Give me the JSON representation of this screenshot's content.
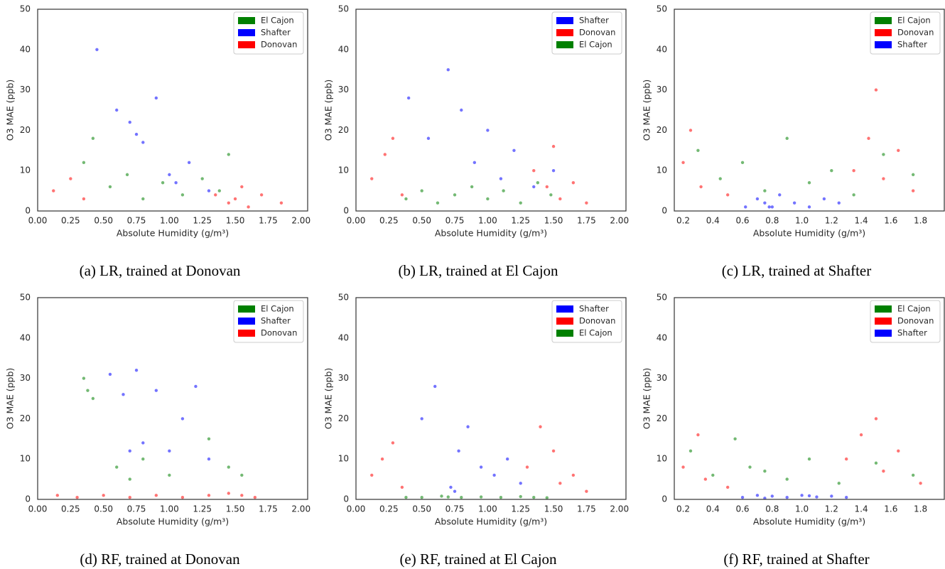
{
  "chart_data": [
    {
      "type": "scatter",
      "caption": "(a) LR, trained at Donovan",
      "xlabel": "Absolute Humidity (g/m³)",
      "ylabel": "O3 MAE (ppb)",
      "xlim": [
        0,
        2.05
      ],
      "ylim": [
        0,
        50
      ],
      "legend": "upper right",
      "xticks": [
        {
          "value": 0,
          "label": "0.00"
        },
        0.25,
        {
          "value": 0.5,
          "label": "0.50"
        },
        0.75,
        {
          "value": 1,
          "label": "1.00"
        },
        1.25,
        {
          "value": 1.5,
          "label": "1.50"
        },
        1.75,
        {
          "value": 2,
          "label": "2.00"
        }
      ],
      "yticks": [
        0,
        10,
        20,
        30,
        40,
        50
      ],
      "series": [
        {
          "name": "El Cajon",
          "color": "#008000",
          "x": [
            0.35,
            0.42,
            0.55,
            0.68,
            0.8,
            0.95,
            1.1,
            1.25,
            1.38,
            1.45
          ],
          "values": [
            12,
            18,
            6,
            9,
            3,
            7,
            4,
            8,
            5,
            14
          ]
        },
        {
          "name": "Shafter",
          "color": "#0000ff",
          "x": [
            0.45,
            0.6,
            0.7,
            0.75,
            0.8,
            0.9,
            1.0,
            1.05,
            1.15,
            1.3
          ],
          "values": [
            40,
            25,
            22,
            19,
            17,
            28,
            9,
            7,
            12,
            5
          ]
        },
        {
          "name": "Donovan",
          "color": "#ff0000",
          "x": [
            0.12,
            0.25,
            0.35,
            1.35,
            1.45,
            1.5,
            1.55,
            1.6,
            1.7,
            1.85
          ],
          "values": [
            5,
            8,
            3,
            4,
            2,
            3,
            6,
            1,
            4,
            2
          ]
        }
      ]
    },
    {
      "type": "scatter",
      "caption": "(b) LR, trained at El Cajon",
      "xlabel": "Absolute Humidity (g/m³)",
      "ylabel": "O3 MAE (ppb)",
      "xlim": [
        0,
        2.05
      ],
      "ylim": [
        0,
        50
      ],
      "legend": "upper right",
      "xticks": [
        {
          "value": 0,
          "label": "0.00"
        },
        0.25,
        {
          "value": 0.5,
          "label": "0.50"
        },
        0.75,
        {
          "value": 1,
          "label": "1.00"
        },
        1.25,
        {
          "value": 1.5,
          "label": "1.50"
        },
        1.75,
        {
          "value": 2,
          "label": "2.00"
        }
      ],
      "yticks": [
        0,
        10,
        20,
        30,
        40,
        50
      ],
      "series": [
        {
          "name": "Shafter",
          "color": "#0000ff",
          "x": [
            0.4,
            0.55,
            0.7,
            0.8,
            0.9,
            1.0,
            1.1,
            1.2,
            1.35,
            1.5
          ],
          "values": [
            28,
            18,
            35,
            25,
            12,
            20,
            8,
            15,
            6,
            10
          ]
        },
        {
          "name": "Donovan",
          "color": "#ff0000",
          "x": [
            0.12,
            0.22,
            0.28,
            0.35,
            1.35,
            1.45,
            1.5,
            1.55,
            1.65,
            1.75
          ],
          "values": [
            8,
            14,
            18,
            4,
            10,
            6,
            16,
            3,
            7,
            2
          ]
        },
        {
          "name": "El Cajon",
          "color": "#008000",
          "x": [
            0.38,
            0.5,
            0.62,
            0.75,
            0.88,
            1.0,
            1.12,
            1.25,
            1.38,
            1.48
          ],
          "values": [
            3,
            5,
            2,
            4,
            6,
            3,
            5,
            2,
            7,
            4
          ]
        }
      ]
    },
    {
      "type": "scatter",
      "caption": "(c) LR, trained at Shafter",
      "xlabel": "Absolute Humidity (g/m³)",
      "ylabel": "O3 MAE (ppb)",
      "xlim": [
        0.14,
        1.96
      ],
      "ylim": [
        0,
        50
      ],
      "legend": "upper right",
      "xticks": [
        0.2,
        0.4,
        0.6,
        0.8,
        {
          "value": 1,
          "label": "1.0"
        },
        1.2,
        1.4,
        1.6,
        1.8
      ],
      "yticks": [
        0,
        10,
        20,
        30,
        40,
        50
      ],
      "series": [
        {
          "name": "El Cajon",
          "color": "#008000",
          "x": [
            0.3,
            0.45,
            0.6,
            0.75,
            0.9,
            1.05,
            1.2,
            1.35,
            1.55,
            1.75
          ],
          "values": [
            15,
            8,
            12,
            5,
            18,
            7,
            10,
            4,
            14,
            9
          ]
        },
        {
          "name": "Donovan",
          "color": "#ff0000",
          "x": [
            0.2,
            0.25,
            0.32,
            0.5,
            1.35,
            1.45,
            1.5,
            1.55,
            1.65,
            1.75
          ],
          "values": [
            12,
            20,
            6,
            4,
            10,
            18,
            30,
            8,
            15,
            5
          ]
        },
        {
          "name": "Shafter",
          "color": "#0000ff",
          "x": [
            0.62,
            0.7,
            0.75,
            0.8,
            0.85,
            0.95,
            1.05,
            1.15,
            1.25,
            0.78
          ],
          "values": [
            1,
            3,
            2,
            1,
            4,
            2,
            1,
            3,
            2,
            1
          ]
        }
      ]
    },
    {
      "type": "scatter",
      "caption": "(d) RF, trained at Donovan",
      "xlabel": "Absolute Humidity (g/m³)",
      "ylabel": "O3 MAE (ppb)",
      "xlim": [
        0,
        2.05
      ],
      "ylim": [
        0,
        50
      ],
      "legend": "upper right",
      "xticks": [
        {
          "value": 0,
          "label": "0.00"
        },
        0.25,
        {
          "value": 0.5,
          "label": "0.50"
        },
        0.75,
        {
          "value": 1,
          "label": "1.00"
        },
        1.25,
        {
          "value": 1.5,
          "label": "1.50"
        },
        1.75,
        {
          "value": 2,
          "label": "2.00"
        }
      ],
      "yticks": [
        0,
        10,
        20,
        30,
        40,
        50
      ],
      "series": [
        {
          "name": "El Cajon",
          "color": "#008000",
          "x": [
            0.35,
            0.38,
            0.42,
            0.6,
            0.7,
            0.8,
            1.0,
            1.3,
            1.45,
            1.55
          ],
          "values": [
            30,
            27,
            25,
            8,
            5,
            10,
            6,
            15,
            8,
            6
          ]
        },
        {
          "name": "Shafter",
          "color": "#0000ff",
          "x": [
            0.55,
            0.65,
            0.75,
            0.8,
            0.9,
            1.0,
            1.1,
            1.2,
            1.3,
            0.7
          ],
          "values": [
            31,
            26,
            32,
            14,
            27,
            12,
            20,
            28,
            10,
            12
          ]
        },
        {
          "name": "Donovan",
          "color": "#ff0000",
          "x": [
            0.15,
            0.3,
            0.5,
            0.7,
            0.9,
            1.1,
            1.3,
            1.45,
            1.55,
            1.65
          ],
          "values": [
            1,
            0.5,
            1,
            0.5,
            1,
            0.5,
            1,
            1.5,
            1,
            0.5
          ]
        }
      ]
    },
    {
      "type": "scatter",
      "caption": "(e) RF, trained at El Cajon",
      "xlabel": "Absolute Humidity (g/m³)",
      "ylabel": "O3 MAE (ppb)",
      "xlim": [
        0,
        2.05
      ],
      "ylim": [
        0,
        50
      ],
      "legend": "upper right",
      "xticks": [
        {
          "value": 0,
          "label": "0.00"
        },
        0.25,
        {
          "value": 0.5,
          "label": "0.50"
        },
        0.75,
        {
          "value": 1,
          "label": "1.00"
        },
        1.25,
        {
          "value": 1.5,
          "label": "1.50"
        },
        1.75,
        {
          "value": 2,
          "label": "2.00"
        }
      ],
      "yticks": [
        0,
        10,
        20,
        30,
        40,
        50
      ],
      "series": [
        {
          "name": "Shafter",
          "color": "#0000ff",
          "x": [
            0.5,
            0.6,
            0.72,
            0.78,
            0.85,
            0.95,
            1.05,
            1.15,
            1.25,
            0.75
          ],
          "values": [
            20,
            28,
            3,
            12,
            18,
            8,
            6,
            10,
            4,
            2
          ]
        },
        {
          "name": "Donovan",
          "color": "#ff0000",
          "x": [
            0.12,
            0.2,
            0.28,
            0.35,
            1.3,
            1.4,
            1.5,
            1.55,
            1.65,
            1.75
          ],
          "values": [
            6,
            10,
            14,
            3,
            8,
            18,
            12,
            4,
            6,
            2
          ]
        },
        {
          "name": "El Cajon",
          "color": "#008000",
          "x": [
            0.38,
            0.5,
            0.65,
            0.8,
            0.95,
            1.1,
            1.25,
            1.35,
            1.45,
            0.7
          ],
          "values": [
            0.5,
            0.5,
            0.8,
            0.5,
            0.6,
            0.5,
            0.7,
            0.5,
            0.4,
            0.6
          ]
        }
      ]
    },
    {
      "type": "scatter",
      "caption": "(f) RF, trained at Shafter",
      "xlabel": "Absolute Humidity (g/m³)",
      "ylabel": "O3 MAE (ppb)",
      "xlim": [
        0.14,
        1.96
      ],
      "ylim": [
        0,
        50
      ],
      "legend": "upper right",
      "xticks": [
        0.2,
        0.4,
        0.6,
        0.8,
        {
          "value": 1,
          "label": "1.0"
        },
        1.2,
        1.4,
        1.6,
        1.8
      ],
      "yticks": [
        0,
        10,
        20,
        30,
        40,
        50
      ],
      "series": [
        {
          "name": "El Cajon",
          "color": "#008000",
          "x": [
            0.25,
            0.4,
            0.55,
            0.65,
            0.75,
            0.9,
            1.05,
            1.25,
            1.5,
            1.75
          ],
          "values": [
            12,
            6,
            15,
            8,
            7,
            5,
            10,
            4,
            9,
            6
          ]
        },
        {
          "name": "Donovan",
          "color": "#ff0000",
          "x": [
            0.2,
            0.3,
            0.35,
            0.5,
            1.3,
            1.4,
            1.5,
            1.55,
            1.65,
            1.8
          ],
          "values": [
            8,
            16,
            5,
            3,
            10,
            16,
            20,
            7,
            12,
            4
          ]
        },
        {
          "name": "Shafter",
          "color": "#0000ff",
          "x": [
            0.6,
            0.7,
            0.8,
            0.9,
            1.0,
            1.1,
            1.2,
            1.3,
            0.75,
            1.05
          ],
          "values": [
            0.5,
            1,
            0.8,
            0.5,
            1,
            0.6,
            0.8,
            0.5,
            0.3,
            0.9
          ]
        }
      ]
    }
  ]
}
